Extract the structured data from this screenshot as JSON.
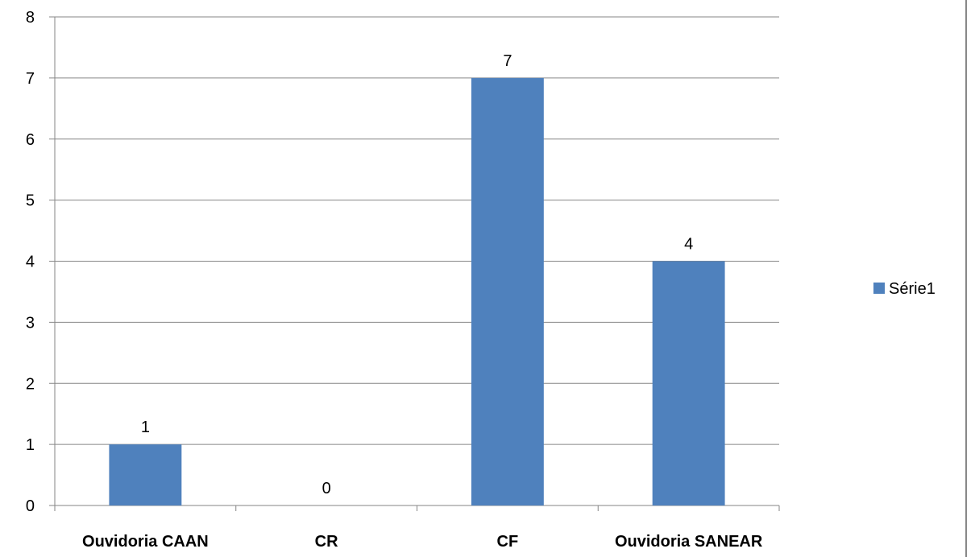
{
  "chart_data": {
    "type": "bar",
    "categories": [
      "Ouvidoria CAAN",
      "CR",
      "CF",
      "Ouvidoria SANEAR"
    ],
    "series": [
      {
        "name": "Série1",
        "values": [
          1,
          0,
          7,
          4
        ]
      }
    ],
    "data_labels": [
      "1",
      "0",
      "7",
      "4"
    ],
    "ylim": [
      0,
      8
    ],
    "yticks": [
      0,
      1,
      2,
      3,
      4,
      5,
      6,
      7,
      8
    ],
    "grid": true,
    "legend_position": "right",
    "bar_color": "#4F81BD",
    "gridline_color": "#868686"
  }
}
